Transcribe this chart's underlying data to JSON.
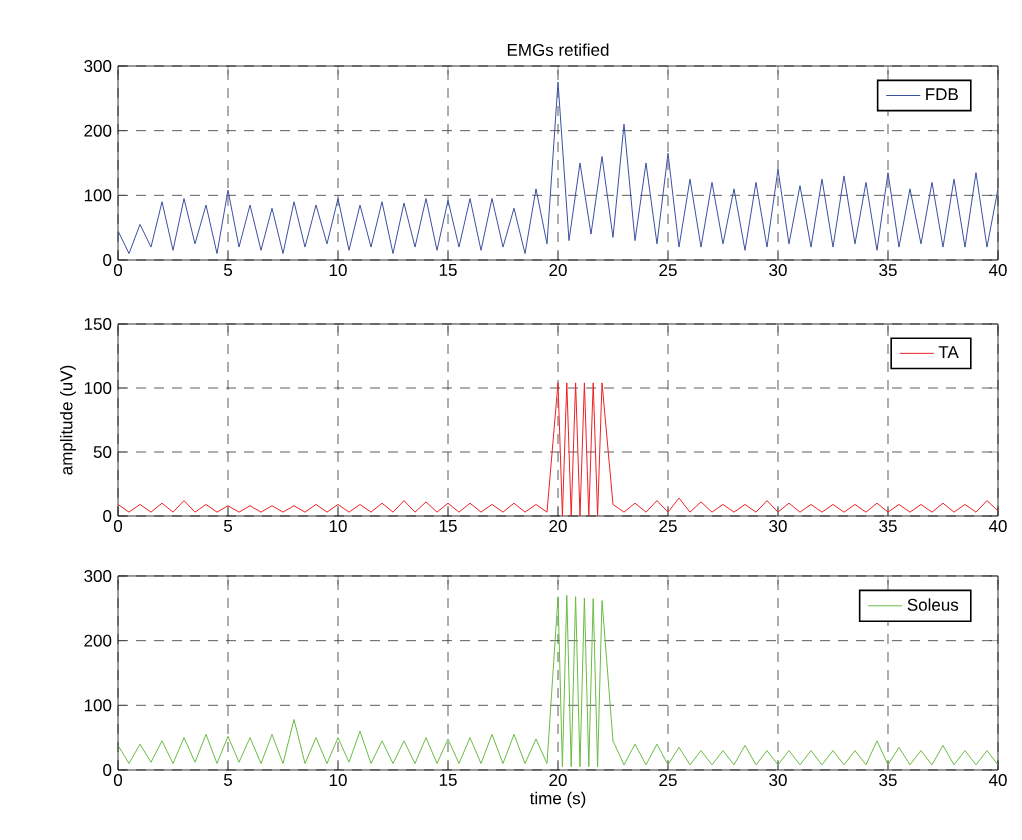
{
  "chart_data": [
    {
      "type": "line",
      "title": "EMGs retified",
      "xlim": [
        0,
        40
      ],
      "ylim": [
        0,
        300
      ],
      "xticks": [
        0,
        5,
        10,
        15,
        20,
        25,
        30,
        35,
        40
      ],
      "yticks": [
        0,
        100,
        200,
        300
      ],
      "grid": true,
      "legend": "top right",
      "marker": "none",
      "line_style": "solid",
      "series": [
        {
          "name": "FDB",
          "color": "#3a50a0",
          "x": [
            0,
            0.5,
            1,
            1.5,
            2,
            2.5,
            3,
            3.5,
            4,
            4.5,
            5,
            5.5,
            6,
            6.5,
            7,
            7.5,
            8,
            8.5,
            9,
            9.5,
            10,
            10.5,
            11,
            11.5,
            12,
            12.5,
            13,
            13.5,
            14,
            14.5,
            15,
            15.5,
            16,
            16.5,
            17,
            17.5,
            18,
            18.5,
            19,
            19.5,
            20,
            20.5,
            21,
            21.5,
            22,
            22.5,
            23,
            23.5,
            24,
            24.5,
            25,
            25.5,
            26,
            26.5,
            27,
            27.5,
            28,
            28.5,
            29,
            29.5,
            30,
            30.5,
            31,
            31.5,
            32,
            32.5,
            33,
            33.5,
            34,
            34.5,
            35,
            35.5,
            36,
            36.5,
            37,
            37.5,
            38,
            38.5,
            39,
            39.5,
            40
          ],
          "values": [
            45,
            10,
            55,
            20,
            90,
            15,
            95,
            25,
            85,
            10,
            108,
            20,
            85,
            15,
            80,
            10,
            90,
            20,
            85,
            25,
            95,
            15,
            85,
            20,
            90,
            10,
            88,
            20,
            95,
            15,
            92,
            20,
            95,
            15,
            95,
            20,
            80,
            10,
            110,
            25,
            275,
            30,
            150,
            40,
            160,
            35,
            210,
            30,
            150,
            25,
            165,
            20,
            125,
            20,
            120,
            25,
            110,
            15,
            120,
            20,
            140,
            25,
            115,
            20,
            125,
            20,
            130,
            25,
            120,
            15,
            135,
            20,
            110,
            25,
            120,
            20,
            125,
            20,
            135,
            20,
            110
          ]
        }
      ]
    },
    {
      "type": "line",
      "ylabel": "amplitude (uV)",
      "xlim": [
        0,
        40
      ],
      "ylim": [
        0,
        150
      ],
      "xticks": [
        0,
        5,
        10,
        15,
        20,
        25,
        30,
        35,
        40
      ],
      "yticks": [
        0,
        50,
        100,
        150
      ],
      "grid": true,
      "legend": "top right",
      "marker": "none",
      "line_style": "solid",
      "series": [
        {
          "name": "TA",
          "color": "#ee2024",
          "x": [
            0,
            0.5,
            1,
            1.5,
            2,
            2.5,
            3,
            3.5,
            4,
            4.5,
            5,
            5.5,
            6,
            6.5,
            7,
            7.5,
            8,
            8.5,
            9,
            9.5,
            10,
            10.5,
            11,
            11.5,
            12,
            12.5,
            13,
            13.5,
            14,
            14.5,
            15,
            15.5,
            16,
            16.5,
            17,
            17.5,
            18,
            18.5,
            19,
            19.5,
            20,
            20.2,
            20.4,
            20.6,
            20.8,
            21,
            21.2,
            21.4,
            21.6,
            21.8,
            22,
            22.5,
            23,
            23.5,
            24,
            24.5,
            25,
            25.5,
            26,
            26.5,
            27,
            27.5,
            28,
            28.5,
            29,
            29.5,
            30,
            30.5,
            31,
            31.5,
            32,
            32.5,
            33,
            33.5,
            34,
            34.5,
            35,
            35.5,
            36,
            36.5,
            37,
            37.5,
            38,
            38.5,
            39,
            39.5,
            40
          ],
          "values": [
            9,
            3,
            9,
            3,
            10,
            3,
            12,
            3,
            9,
            3,
            8,
            3,
            8,
            3,
            8,
            3,
            8,
            3,
            9,
            3,
            9,
            3,
            9,
            3,
            10,
            3,
            12,
            3,
            11,
            3,
            10,
            3,
            10,
            3,
            9,
            3,
            10,
            3,
            9,
            3,
            104,
            0,
            104,
            0,
            104,
            0,
            104,
            0,
            104,
            0,
            104,
            9,
            3,
            10,
            3,
            12,
            3,
            14,
            3,
            11,
            3,
            9,
            3,
            9,
            3,
            12,
            3,
            10,
            3,
            9,
            3,
            9,
            3,
            9,
            3,
            10,
            3,
            9,
            3,
            9,
            3,
            10,
            3,
            9,
            3,
            12,
            4
          ]
        }
      ]
    },
    {
      "type": "line",
      "xlabel": "time (s)",
      "xlim": [
        0,
        40
      ],
      "ylim": [
        0,
        300
      ],
      "xticks": [
        0,
        5,
        10,
        15,
        20,
        25,
        30,
        35,
        40
      ],
      "yticks": [
        0,
        100,
        200,
        300
      ],
      "grid": true,
      "legend": "top right",
      "marker": "none",
      "line_style": "solid",
      "series": [
        {
          "name": "Soleus",
          "color": "#6abb44",
          "x": [
            0,
            0.5,
            1,
            1.5,
            2,
            2.5,
            3,
            3.5,
            4,
            4.5,
            5,
            5.5,
            6,
            6.5,
            7,
            7.5,
            8,
            8.5,
            9,
            9.5,
            10,
            10.5,
            11,
            11.5,
            12,
            12.5,
            13,
            13.5,
            14,
            14.5,
            15,
            15.5,
            16,
            16.5,
            17,
            17.5,
            18,
            18.5,
            19,
            19.5,
            20,
            20.2,
            20.4,
            20.6,
            20.8,
            21,
            21.2,
            21.4,
            21.6,
            21.8,
            22,
            22.5,
            23,
            23.5,
            24,
            24.5,
            25,
            25.5,
            26,
            26.5,
            27,
            27.5,
            28,
            28.5,
            29,
            29.5,
            30,
            30.5,
            31,
            31.5,
            32,
            32.5,
            33,
            33.5,
            34,
            34.5,
            35,
            35.5,
            36,
            36.5,
            37,
            37.5,
            38,
            38.5,
            39,
            39.5,
            40
          ],
          "values": [
            38,
            10,
            40,
            12,
            45,
            10,
            50,
            12,
            55,
            10,
            52,
            12,
            50,
            10,
            55,
            10,
            78,
            10,
            50,
            10,
            50,
            12,
            60,
            10,
            45,
            10,
            45,
            10,
            50,
            10,
            48,
            10,
            50,
            10,
            55,
            10,
            55,
            10,
            48,
            10,
            268,
            5,
            270,
            5,
            268,
            5,
            266,
            5,
            265,
            5,
            262,
            45,
            8,
            40,
            8,
            40,
            8,
            35,
            8,
            30,
            8,
            30,
            8,
            38,
            8,
            30,
            8,
            30,
            8,
            30,
            8,
            30,
            8,
            30,
            8,
            45,
            8,
            35,
            8,
            30,
            8,
            38,
            8,
            30,
            8,
            30,
            8
          ]
        }
      ]
    }
  ]
}
